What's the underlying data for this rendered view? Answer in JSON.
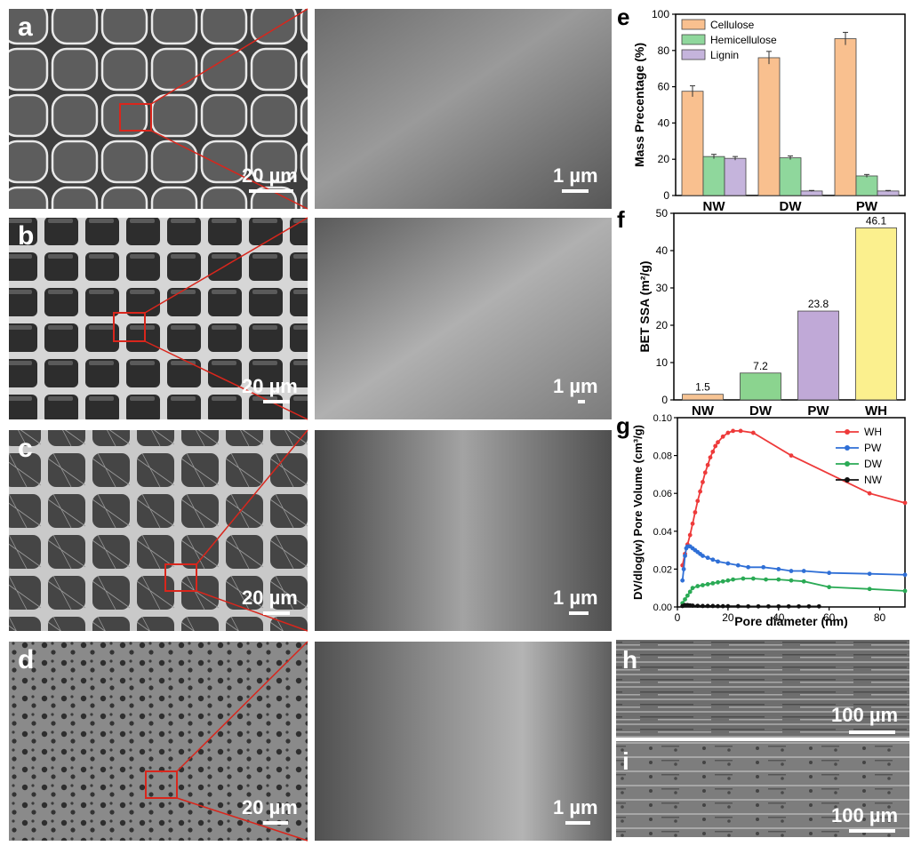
{
  "sem_panels": [
    {
      "letter": "a",
      "low_mag_scale": "20 µm",
      "high_mag_scale": "1 µm",
      "cell_style": "rounded"
    },
    {
      "letter": "b",
      "low_mag_scale": "20 µm",
      "high_mag_scale": "1 µm",
      "cell_style": "angular"
    },
    {
      "letter": "c",
      "low_mag_scale": "20 µm",
      "high_mag_scale": "1 µm",
      "cell_style": "fibrillar"
    },
    {
      "letter": "d",
      "low_mag_scale": "20 µm",
      "high_mag_scale": "1 µm",
      "cell_style": "porous"
    }
  ],
  "longitudinal_panels": [
    {
      "letter": "h",
      "scale": "100 µm"
    },
    {
      "letter": "i",
      "scale": "100 µm"
    }
  ],
  "colors": {
    "cellulose": "#f9c08f",
    "hemicellulose": "#8fd79c",
    "lignin": "#c5b4dc",
    "nw_bar": "#f7c494",
    "dw_bar": "#8bd48f",
    "pw_bar": "#c0a9d7",
    "wh_bar": "#fbf08e",
    "wh_line": "#ee3a3a",
    "pw_line": "#2f6fd6",
    "dw_line": "#2aaa55",
    "nw_line": "#111111",
    "zoom_box": "#d9261c"
  },
  "chart_data": [
    {
      "panel": "e",
      "type": "bar",
      "categories": [
        "NW",
        "DW",
        "PW"
      ],
      "series": [
        {
          "name": "Cellulose",
          "values": [
            57.5,
            76.0,
            86.5
          ],
          "errors": [
            3.0,
            3.5,
            3.5
          ]
        },
        {
          "name": "Hemicellulose",
          "values": [
            21.5,
            20.8,
            10.8
          ],
          "errors": [
            1.2,
            1.0,
            0.8
          ]
        },
        {
          "name": "Lignin",
          "values": [
            20.5,
            2.5,
            2.5
          ],
          "errors": [
            1.0,
            0.3,
            0.3
          ]
        }
      ],
      "ylabel": "Mass Precentage (%)",
      "ylim": [
        0,
        100
      ],
      "yticks": [
        "0",
        "20",
        "40",
        "60",
        "80",
        "100"
      ],
      "legend": "top-left"
    },
    {
      "panel": "f",
      "type": "bar",
      "categories": [
        "NW",
        "DW",
        "PW",
        "WH"
      ],
      "values": [
        1.5,
        7.2,
        23.8,
        46.1
      ],
      "data_labels": [
        "1.5",
        "7.2",
        "23.8",
        "46.1"
      ],
      "ylabel": "BET SSA (m²/g)",
      "ylim": [
        0,
        50
      ],
      "yticks": [
        "0",
        "10",
        "20",
        "30",
        "40",
        "50"
      ]
    },
    {
      "panel": "g",
      "type": "line",
      "xlabel": "Pore diameter (nm)",
      "ylabel": "DV/dlog(w) Pore Volume (cm³/g)",
      "xlim": [
        0,
        90
      ],
      "ylim": [
        0,
        0.1
      ],
      "xticks": [
        "0",
        "20",
        "40",
        "60",
        "80"
      ],
      "yticks": [
        "0.00",
        "0.02",
        "0.04",
        "0.06",
        "0.08",
        "0.10"
      ],
      "legend": "top-right",
      "series": [
        {
          "name": "WH",
          "points": [
            [
              2,
              0.022
            ],
            [
              3,
              0.028
            ],
            [
              4,
              0.033
            ],
            [
              5,
              0.038
            ],
            [
              6,
              0.044
            ],
            [
              7,
              0.05
            ],
            [
              8,
              0.056
            ],
            [
              9,
              0.061
            ],
            [
              10,
              0.066
            ],
            [
              11,
              0.071
            ],
            [
              12,
              0.075
            ],
            [
              13,
              0.079
            ],
            [
              14,
              0.082
            ],
            [
              15,
              0.085
            ],
            [
              16,
              0.087
            ],
            [
              18,
              0.09
            ],
            [
              20,
              0.092
            ],
            [
              22,
              0.093
            ],
            [
              25,
              0.093
            ],
            [
              30,
              0.092
            ],
            [
              45,
              0.08
            ],
            [
              76,
              0.06
            ],
            [
              90,
              0.055
            ]
          ]
        },
        {
          "name": "PW",
          "points": [
            [
              2,
              0.014
            ],
            [
              2.5,
              0.02
            ],
            [
              3,
              0.027
            ],
            [
              3.5,
              0.031
            ],
            [
              4,
              0.032
            ],
            [
              5,
              0.032
            ],
            [
              6,
              0.031
            ],
            [
              7,
              0.03
            ],
            [
              8,
              0.029
            ],
            [
              9,
              0.028
            ],
            [
              10,
              0.027
            ],
            [
              12,
              0.026
            ],
            [
              14,
              0.025
            ],
            [
              16,
              0.024
            ],
            [
              20,
              0.023
            ],
            [
              24,
              0.022
            ],
            [
              28,
              0.021
            ],
            [
              34,
              0.021
            ],
            [
              40,
              0.02
            ],
            [
              45,
              0.019
            ],
            [
              50,
              0.019
            ],
            [
              60,
              0.018
            ],
            [
              76,
              0.0175
            ],
            [
              90,
              0.017
            ]
          ]
        },
        {
          "name": "DW",
          "points": [
            [
              2,
              0.002
            ],
            [
              3,
              0.004
            ],
            [
              4,
              0.006
            ],
            [
              5,
              0.008
            ],
            [
              6,
              0.01
            ],
            [
              8,
              0.011
            ],
            [
              10,
              0.0115
            ],
            [
              12,
              0.012
            ],
            [
              14,
              0.0125
            ],
            [
              16,
              0.013
            ],
            [
              18,
              0.0135
            ],
            [
              20,
              0.014
            ],
            [
              22,
              0.0145
            ],
            [
              26,
              0.015
            ],
            [
              30,
              0.015
            ],
            [
              35,
              0.0145
            ],
            [
              40,
              0.0145
            ],
            [
              45,
              0.014
            ],
            [
              50,
              0.0135
            ],
            [
              60,
              0.0105
            ],
            [
              76,
              0.0095
            ],
            [
              90,
              0.0085
            ]
          ]
        },
        {
          "name": "NW",
          "points": [
            [
              2,
              0.0005
            ],
            [
              3,
              0.001
            ],
            [
              4,
              0.001
            ],
            [
              5,
              0.0008
            ],
            [
              6,
              0.0007
            ],
            [
              8,
              0.0006
            ],
            [
              10,
              0.0005
            ],
            [
              12,
              0.0005
            ],
            [
              14,
              0.0005
            ],
            [
              16,
              0.0004
            ],
            [
              18,
              0.0004
            ],
            [
              20,
              0.0004
            ],
            [
              24,
              0.0004
            ],
            [
              28,
              0.0003
            ],
            [
              32,
              0.0003
            ],
            [
              36,
              0.0003
            ],
            [
              40,
              0.0003
            ],
            [
              44,
              0.0003
            ],
            [
              48,
              0.0003
            ],
            [
              52,
              0.0003
            ],
            [
              56,
              0.0003
            ]
          ]
        }
      ]
    }
  ]
}
